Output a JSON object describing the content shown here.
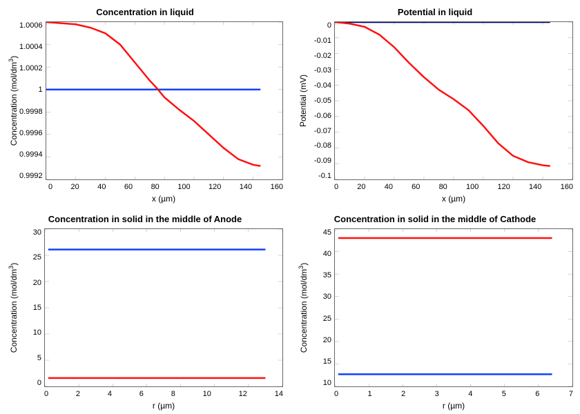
{
  "colors": {
    "blue": "#1040ff",
    "red": "#ff1010",
    "axis": "#666666",
    "bg": "#ffffff"
  },
  "typography": {
    "title_fontsize": 13,
    "title_weight": "bold",
    "label_fontsize": 12,
    "tick_fontsize": 11
  },
  "panels": {
    "top_left": {
      "title": "Concentration in liquid",
      "xlabel": "x (µm)",
      "ylabel_html": "Concentration (mol/dm<sup>3</sup>)",
      "xlim": [
        0,
        160
      ],
      "ylim": [
        0.9992,
        1.0006
      ],
      "xticks": [
        "0",
        "20",
        "40",
        "60",
        "80",
        "100",
        "120",
        "140",
        "160"
      ],
      "yticks": [
        "1.0006",
        "1.0004",
        "1.0002",
        "1",
        "0.9998",
        "0.9996",
        "0.9994",
        "0.9992"
      ],
      "series": [
        {
          "name": "blue-flat",
          "color": "#1040ff",
          "x": [
            0,
            145
          ],
          "y": [
            1.0,
            1.0
          ]
        },
        {
          "name": "red-curve",
          "color": "#ff1010",
          "x": [
            0,
            10,
            20,
            30,
            40,
            50,
            60,
            70,
            75,
            80,
            90,
            100,
            110,
            120,
            130,
            140,
            145
          ],
          "y": [
            1.0006,
            1.00059,
            1.00058,
            1.00055,
            1.0005,
            1.0004,
            1.00024,
            1.00008,
            1.00001,
            0.99993,
            0.99982,
            0.99972,
            0.9996,
            0.99948,
            0.99938,
            0.99933,
            0.99932
          ]
        }
      ]
    },
    "top_right": {
      "title": "Potential in liquid",
      "xlabel": "x (µm)",
      "ylabel_html": "Potential (mV)",
      "xlim": [
        0,
        160
      ],
      "ylim": [
        -0.1,
        0.0
      ],
      "xticks": [
        "0",
        "20",
        "40",
        "60",
        "80",
        "100",
        "120",
        "140",
        "160"
      ],
      "yticks": [
        "0",
        "-0.01",
        "-0.02",
        "-0.03",
        "-0.04",
        "-0.05",
        "-0.06",
        "-0.07",
        "-0.08",
        "-0.09",
        "-0.1"
      ],
      "series": [
        {
          "name": "blue-flat",
          "color": "#000080",
          "x": [
            0,
            145
          ],
          "y": [
            0,
            0
          ]
        },
        {
          "name": "red-curve",
          "color": "#ff1010",
          "x": [
            0,
            10,
            20,
            30,
            40,
            50,
            60,
            70,
            80,
            90,
            100,
            110,
            120,
            130,
            140,
            145
          ],
          "y": [
            0,
            -0.001,
            -0.003,
            -0.008,
            -0.016,
            -0.026,
            -0.035,
            -0.043,
            -0.049,
            -0.056,
            -0.066,
            -0.077,
            -0.085,
            -0.089,
            -0.091,
            -0.0915
          ]
        }
      ]
    },
    "bottom_left": {
      "title": "Concentration in solid in the middle of Anode",
      "xlabel": "r (µm)",
      "ylabel_html": "Concentration (mol/dm<sup>3</sup>)",
      "xlim": [
        0,
        14
      ],
      "ylim": [
        0,
        30
      ],
      "xticks": [
        "0",
        "2",
        "4",
        "6",
        "8",
        "10",
        "12",
        "14"
      ],
      "yticks": [
        "30",
        "25",
        "20",
        "15",
        "10",
        "5",
        "0"
      ],
      "series": [
        {
          "name": "blue-flat",
          "color": "#1040ff",
          "x": [
            0.2,
            13.0
          ],
          "y": [
            26.1,
            26.1
          ]
        },
        {
          "name": "red-flat",
          "color": "#ff1010",
          "x": [
            0.2,
            13.0
          ],
          "y": [
            1.6,
            1.6
          ]
        }
      ]
    },
    "bottom_right": {
      "title": "Concentration in solid in the middle of Cathode",
      "xlabel": "r (µm)",
      "ylabel_html": "Concentration (mol/dm<sup>3</sup>)",
      "xlim": [
        0,
        7
      ],
      "ylim": [
        10,
        45
      ],
      "xticks": [
        "0",
        "1",
        "2",
        "3",
        "4",
        "5",
        "6",
        "7"
      ],
      "yticks": [
        "45",
        "40",
        "35",
        "30",
        "25",
        "20",
        "15",
        "10"
      ],
      "series": [
        {
          "name": "red-flat",
          "color": "#ff1010",
          "x": [
            0.1,
            6.4
          ],
          "y": [
            43,
            43
          ]
        },
        {
          "name": "blue-flat",
          "color": "#1040ff",
          "x": [
            0.1,
            6.4
          ],
          "y": [
            12.7,
            12.7
          ]
        }
      ]
    }
  }
}
